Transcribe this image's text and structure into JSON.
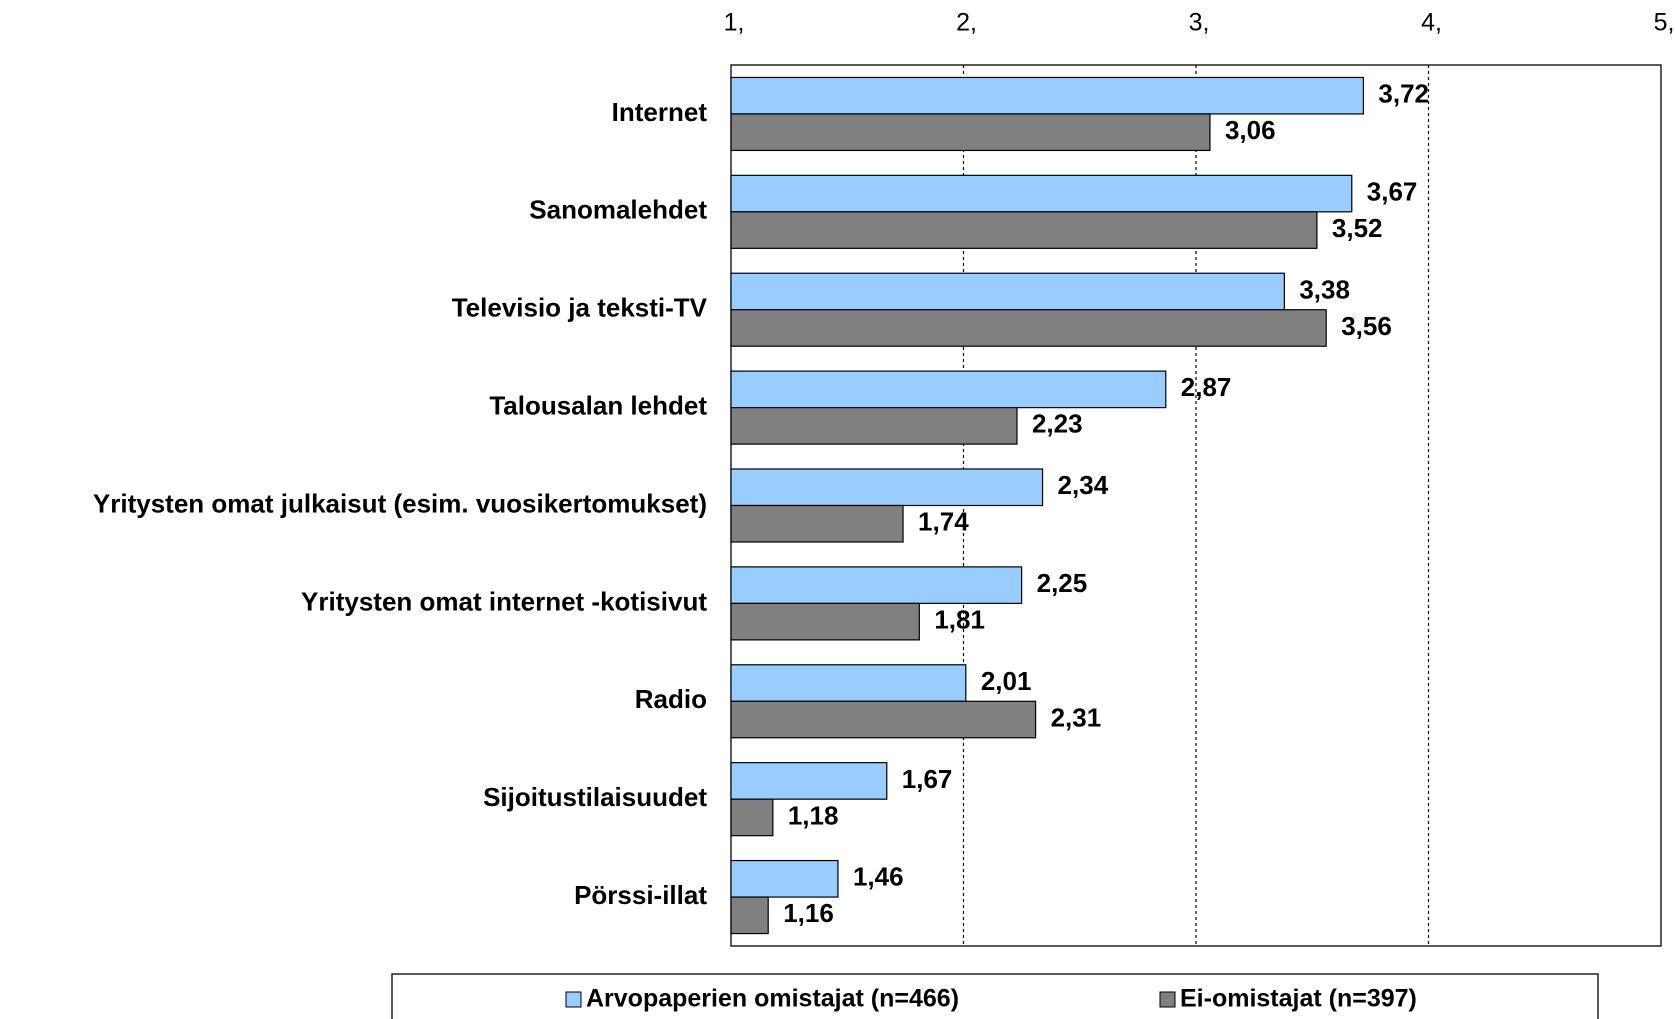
{
  "chart_data": {
    "type": "bar",
    "orientation": "horizontal",
    "categories": [
      "Internet",
      "Sanomalehdet",
      "Televisio ja teksti-TV",
      "Talousalan lehdet",
      "Yritysten omat julkaisut (esim. vuosikertomukset)",
      "Yritysten omat internet -kotisivut",
      "Radio",
      "Sijoitustilaisuudet",
      "Pörssi-illat"
    ],
    "series": [
      {
        "name": "Arvopaperien omistajat (n=466)",
        "color": "#99ccff",
        "values": [
          3.72,
          3.67,
          3.38,
          2.87,
          2.34,
          2.25,
          2.01,
          1.67,
          1.46
        ],
        "value_labels": [
          "3,72",
          "3,67",
          "3,38",
          "2,87",
          "2,34",
          "2,25",
          "2,01",
          "1,67",
          "1,46"
        ]
      },
      {
        "name": "Ei-omistajat (n=397)",
        "color": "#808080",
        "values": [
          3.06,
          3.52,
          3.56,
          2.23,
          1.74,
          1.81,
          2.31,
          1.18,
          1.16
        ],
        "value_labels": [
          "3,06",
          "3,52",
          "3,56",
          "2,23",
          "1,74",
          "1,81",
          "2,31",
          "1,18",
          "1,16"
        ]
      }
    ],
    "xlim": [
      1,
      5
    ],
    "xticks": [
      {
        "value": 1,
        "label": "1,"
      },
      {
        "value": 2,
        "label": "2,"
      },
      {
        "value": 3,
        "label": "3,"
      },
      {
        "value": 4,
        "label": "4,"
      },
      {
        "value": 5,
        "label": "5,"
      }
    ],
    "grid": true,
    "legend": "bottom"
  }
}
